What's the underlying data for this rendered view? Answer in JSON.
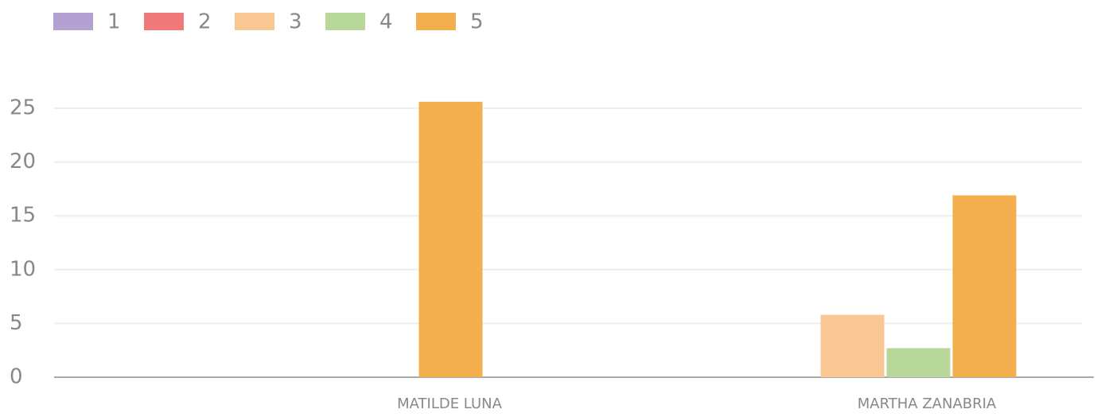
{
  "chart_data": {
    "type": "bar",
    "categories": [
      "MATILDE LUNA",
      "MARTHA ZANABRIA"
    ],
    "series": [
      {
        "name": "1",
        "color": "#b3a1d1",
        "values": [
          0,
          0
        ]
      },
      {
        "name": "2",
        "color": "#f07a7a",
        "values": [
          0,
          0
        ]
      },
      {
        "name": "3",
        "color": "#f9c794",
        "values": [
          0,
          5.8
        ]
      },
      {
        "name": "4",
        "color": "#b8d89b",
        "values": [
          0,
          2.7
        ]
      },
      {
        "name": "5",
        "color": "#f3ae4e",
        "values": [
          25.6,
          16.9
        ]
      }
    ],
    "ylim": [
      0,
      25
    ],
    "yticks": [
      0,
      5,
      10,
      15,
      20,
      25
    ],
    "grid": true,
    "legend": "top-left"
  }
}
